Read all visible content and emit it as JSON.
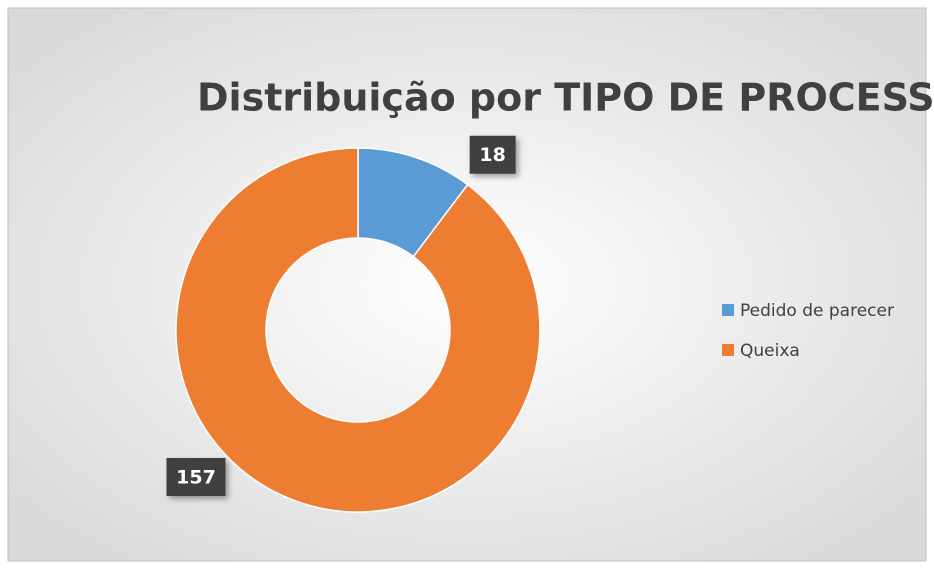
{
  "chart_data": {
    "type": "donut",
    "title": "Distribuição por TIPO DE PROCESSO",
    "categories": [
      "Pedido de parecer",
      "Queixa"
    ],
    "values": [
      18,
      157
    ],
    "colors": [
      "#5b9bd5",
      "#ed7d31"
    ],
    "legend": "right"
  }
}
